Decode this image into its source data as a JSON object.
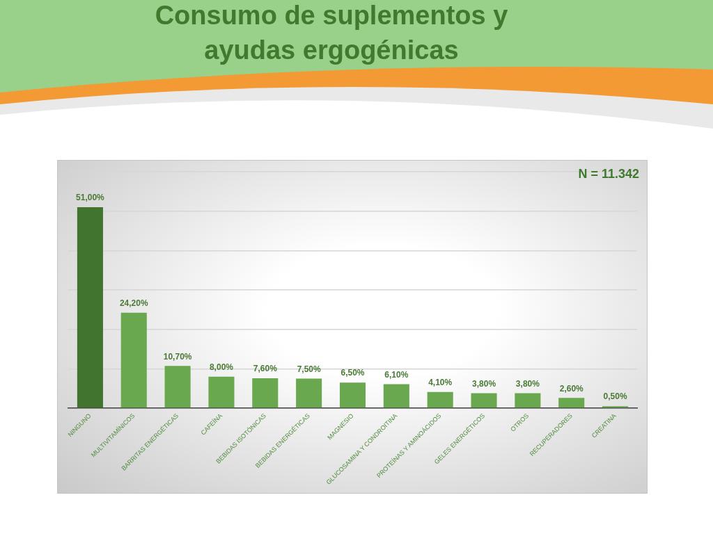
{
  "chart_data": {
    "type": "bar",
    "title": "Consumo de suplementos y ayudas ergogénicas",
    "categories": [
      "NINGUNO",
      "MULTIVITAMÍNICOS",
      "BARRITAS ENERGÉTICAS",
      "CAFEÍNA",
      "BEBIDAS ISOTÓNICAS",
      "BEBIDAS ENERGÉTICAS",
      "MAGNESIO",
      "GLUCOSAMINA Y CONDROITINA",
      "PROTEÍNAS Y AMINOÁCIDOS",
      "GELES ENERGÉTICOS",
      "OTROS",
      "RECUPERADORES",
      "CREATINA"
    ],
    "values": [
      51,
      24.2,
      10.7,
      8,
      7.6,
      7.5,
      6.5,
      6.1,
      4.1,
      3.8,
      3.8,
      2.6,
      0.5
    ],
    "colors": [
      "#41742f",
      "#6aa84f",
      "#6aa84f",
      "#6aa84f",
      "#6aa84f",
      "#6aa84f",
      "#6aa84f",
      "#6aa84f",
      "#6aa84f",
      "#6aa84f",
      "#6aa84f",
      "#6aa84f",
      "#6aa84f"
    ],
    "value_labels": [
      "51,00%",
      "24,20%",
      "10,70%",
      "8,00%",
      "7,60%",
      "7,50%",
      "6,50%",
      "6,10%",
      "4,10%",
      "3,80%",
      "3,80%",
      "2,60%",
      "0,50%"
    ],
    "ylim": [
      0,
      60
    ],
    "yticks": [
      {
        "value": 0,
        "label": null
      },
      {
        "value": 10,
        "label": null
      },
      {
        "value": 20,
        "label": null
      },
      {
        "value": 30,
        "label": null
      },
      {
        "value": 40,
        "label": null
      },
      {
        "value": 50,
        "label": null
      },
      {
        "value": 60,
        "label": null
      }
    ],
    "grid": "y",
    "tick_labels": "x",
    "annotations": [
      "N = 11.342"
    ]
  }
}
